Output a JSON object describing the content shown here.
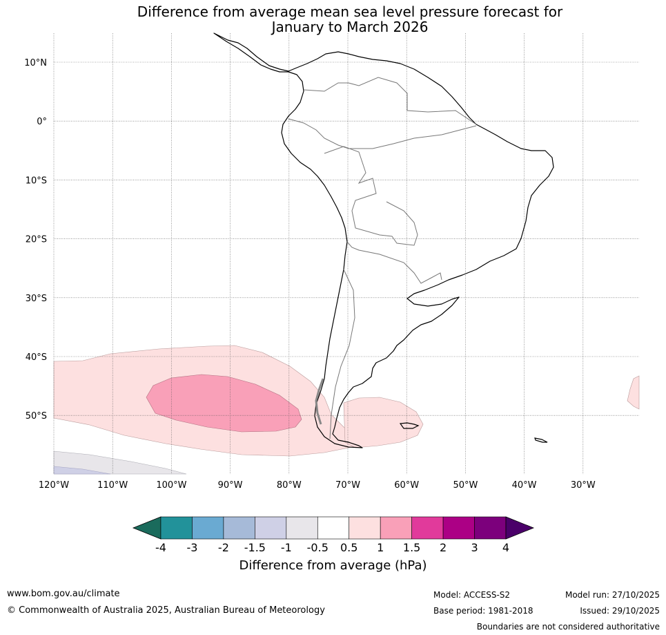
{
  "title": {
    "line1": "Difference from average mean sea level pressure forecast for",
    "line2": "January to March 2026"
  },
  "map": {
    "lat_labels": [
      "10°N",
      "0°",
      "10°S",
      "20°S",
      "30°S",
      "40°S",
      "50°S"
    ],
    "lon_labels": [
      "120°W",
      "110°W",
      "100°W",
      "90°W",
      "80°W",
      "70°W",
      "60°W",
      "50°W",
      "40°W",
      "30°W"
    ],
    "anomaly_regions": [
      {
        "category": "0.5 to 1",
        "location": "South Pacific near 40-55°S, 120-60°W"
      },
      {
        "category": "1 to 1.5",
        "location": "South Pacific near 43-53°S, 105-80°W"
      },
      {
        "category": "0.5 to 1",
        "location": "South Atlantic near 48-55°S, 70-57°W"
      },
      {
        "category": "-1 to -0.5",
        "location": "South Pacific south-west corner"
      },
      {
        "category": "-1.5 to -1",
        "location": "South Pacific south-west corner"
      }
    ]
  },
  "colorbar": {
    "ticks": [
      "-4",
      "-3",
      "-2",
      "-1.5",
      "-1",
      "-0.5",
      "0.5",
      "1",
      "1.5",
      "2",
      "3",
      "4"
    ],
    "colors": [
      "#1a6b5c",
      "#22929a",
      "#6aaad2",
      "#a6bad8",
      "#cfd0e6",
      "#e8e6ea",
      "#ffffff",
      "#fde0e0",
      "#f9a0b8",
      "#e13a9b",
      "#ac0085",
      "#7c007c",
      "#4a0069"
    ],
    "label": "Difference from average (hPa)"
  },
  "footer": {
    "url": "www.bom.gov.au/climate",
    "copyright": "© Commonwealth of Australia 2025, Australian Bureau of Meteorology",
    "model": "Model: ACCESS-S2",
    "base_period": "Base period: 1981-2018",
    "model_run": "Model run: 27/10/2025",
    "issued": "Issued: 29/10/2025",
    "disclaimer": "Boundaries are not considered authoritative"
  }
}
